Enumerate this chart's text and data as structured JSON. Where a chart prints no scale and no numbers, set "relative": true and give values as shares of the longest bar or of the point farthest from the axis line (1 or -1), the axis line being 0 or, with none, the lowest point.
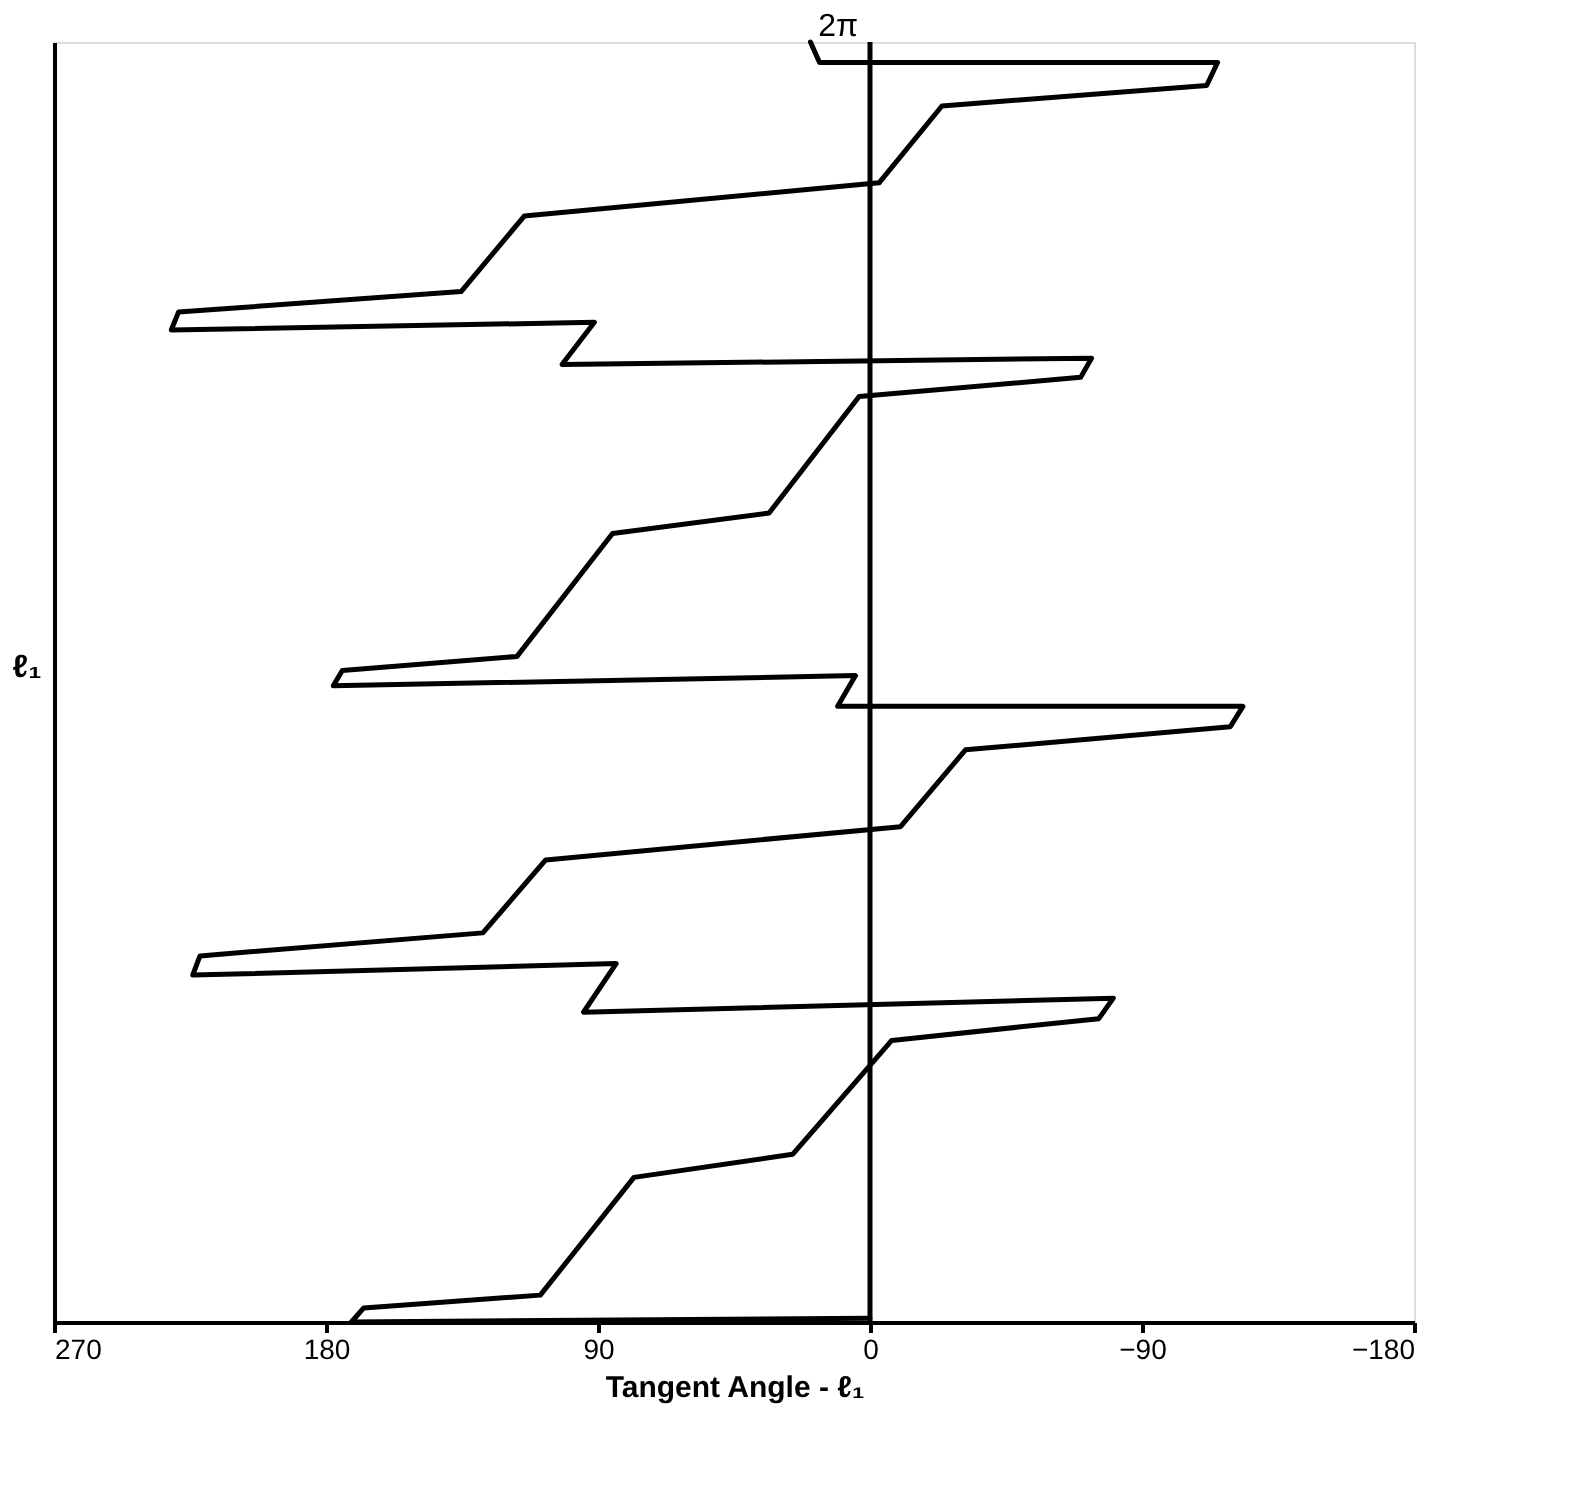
{
  "chart_data": {
    "type": "line",
    "xlabel": "Tangent Angle - ℓ₁",
    "ylabel": "ℓ₁",
    "x": [
      0,
      171.6,
      167.5,
      109.1,
      78.1,
      25.6,
      -7.2,
      -75.7,
      -80.5,
      94.8,
      84.0,
      224.1,
      221.7,
      128.1,
      107.3,
      -10.1,
      -31.6,
      -119.2,
      -123.4,
      10.7,
      4.8,
      177.6,
      174.6,
      116.8,
      85.2,
      33.4,
      3.6,
      -69.7,
      -73.3,
      101.9,
      91.2,
      231.2,
      228.8,
      135.3,
      114.4,
      -3.0,
      -23.8,
      -111.4,
      -115.0,
      16.7,
      19.7
    ],
    "series": [
      {
        "color": "#000000",
        "values": [
          0.003,
          0,
          0.011,
          0.021,
          0.113,
          0.131,
          0.22,
          0.237,
          0.253,
          0.242,
          0.28,
          0.271,
          0.286,
          0.304,
          0.361,
          0.387,
          0.447,
          0.465,
          0.481,
          0.481,
          0.505,
          0.497,
          0.509,
          0.52,
          0.616,
          0.632,
          0.723,
          0.738,
          0.753,
          0.748,
          0.781,
          0.775,
          0.789,
          0.805,
          0.864,
          0.89,
          0.95,
          0.966,
          0.984,
          0.984,
          1.0
        ]
      }
    ],
    "relative": true,
    "annotations": [
      {
        "text": "2π",
        "x": 0,
        "y": 1.0
      }
    ],
    "xlim": [
      270,
      -180
    ],
    "xticks": [
      270,
      180,
      90,
      0,
      -90,
      -180
    ],
    "ref_lines": [
      {
        "axis": "x",
        "value": 0,
        "color": "#000000"
      }
    ],
    "grid": false,
    "marker": "none",
    "line_style": "solid"
  }
}
